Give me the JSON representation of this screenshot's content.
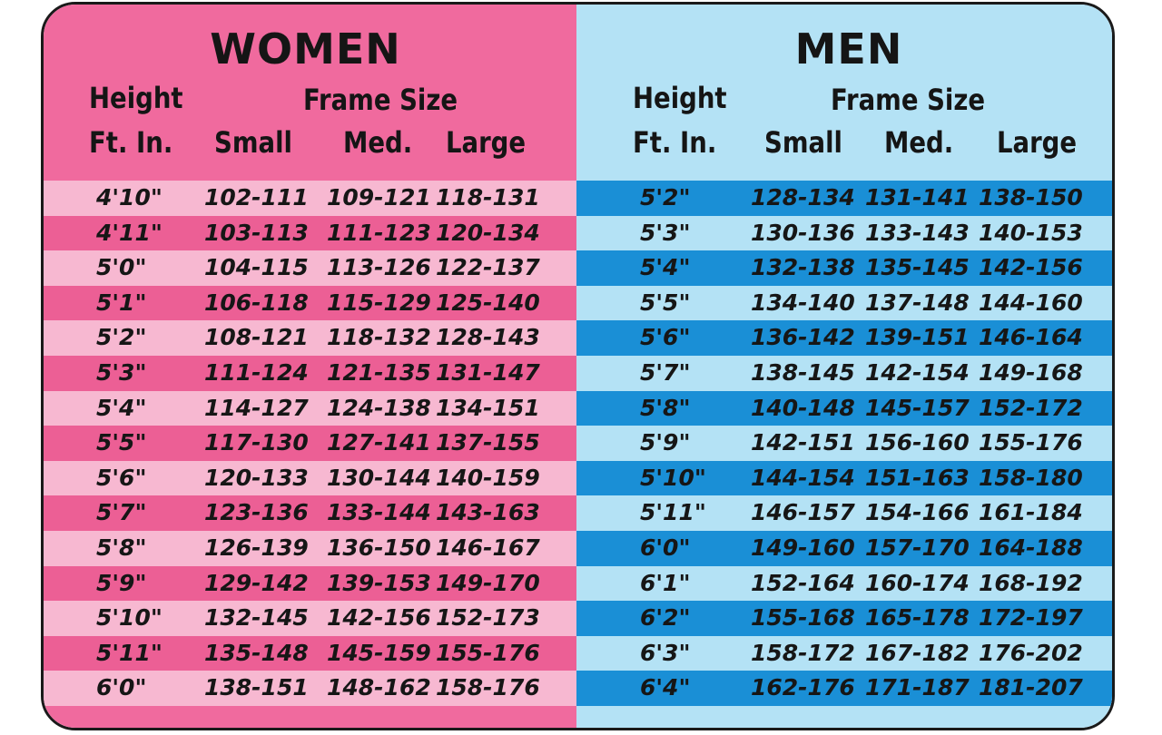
{
  "women": {
    "title": "WOMEN",
    "height_label": "Height",
    "ftin_label": "Ft. In.",
    "frame_label": "Frame Size",
    "small_label": "Small",
    "med_label": "Med.",
    "large_label": "Large",
    "rows": [
      {
        "height": "4'10\"",
        "small": "102-111",
        "med": "109-121",
        "large": "118-131"
      },
      {
        "height": "4'11\"",
        "small": "103-113",
        "med": "111-123",
        "large": "120-134"
      },
      {
        "height": "5'0\"",
        "small": "104-115",
        "med": "113-126",
        "large": "122-137"
      },
      {
        "height": "5'1\"",
        "small": "106-118",
        "med": "115-129",
        "large": "125-140"
      },
      {
        "height": "5'2\"",
        "small": "108-121",
        "med": "118-132",
        "large": "128-143"
      },
      {
        "height": "5'3\"",
        "small": "111-124",
        "med": "121-135",
        "large": "131-147"
      },
      {
        "height": "5'4\"",
        "small": "114-127",
        "med": "124-138",
        "large": "134-151"
      },
      {
        "height": "5'5\"",
        "small": "117-130",
        "med": "127-141",
        "large": "137-155"
      },
      {
        "height": "5'6\"",
        "small": "120-133",
        "med": "130-144",
        "large": "140-159"
      },
      {
        "height": "5'7\"",
        "small": "123-136",
        "med": "133-144",
        "large": "143-163"
      },
      {
        "height": "5'8\"",
        "small": "126-139",
        "med": "136-150",
        "large": "146-167"
      },
      {
        "height": "5'9\"",
        "small": "129-142",
        "med": "139-153",
        "large": "149-170"
      },
      {
        "height": "5'10\"",
        "small": "132-145",
        "med": "142-156",
        "large": "152-173"
      },
      {
        "height": "5'11\"",
        "small": "135-148",
        "med": "145-159",
        "large": "155-176"
      },
      {
        "height": "6'0\"",
        "small": "138-151",
        "med": "148-162",
        "large": "158-176"
      }
    ]
  },
  "men": {
    "title": "MEN",
    "height_label": "Height",
    "ftin_label": "Ft. In.",
    "frame_label": "Frame Size",
    "small_label": "Small",
    "med_label": "Med.",
    "large_label": "Large",
    "rows": [
      {
        "height": "5'2\"",
        "small": "128-134",
        "med": "131-141",
        "large": "138-150"
      },
      {
        "height": "5'3\"",
        "small": "130-136",
        "med": "133-143",
        "large": "140-153"
      },
      {
        "height": "5'4\"",
        "small": "132-138",
        "med": "135-145",
        "large": "142-156"
      },
      {
        "height": "5'5\"",
        "small": "134-140",
        "med": "137-148",
        "large": "144-160"
      },
      {
        "height": "5'6\"",
        "small": "136-142",
        "med": "139-151",
        "large": "146-164"
      },
      {
        "height": "5'7\"",
        "small": "138-145",
        "med": "142-154",
        "large": "149-168"
      },
      {
        "height": "5'8\"",
        "small": "140-148",
        "med": "145-157",
        "large": "152-172"
      },
      {
        "height": "5'9\"",
        "small": "142-151",
        "med": "156-160",
        "large": "155-176"
      },
      {
        "height": "5'10\"",
        "small": "144-154",
        "med": "151-163",
        "large": "158-180"
      },
      {
        "height": "5'11\"",
        "small": "146-157",
        "med": "154-166",
        "large": "161-184"
      },
      {
        "height": "6'0\"",
        "small": "149-160",
        "med": "157-170",
        "large": "164-188"
      },
      {
        "height": "6'1\"",
        "small": "152-164",
        "med": "160-174",
        "large": "168-192"
      },
      {
        "height": "6'2\"",
        "small": "155-168",
        "med": "165-178",
        "large": "172-197"
      },
      {
        "height": "6'3\"",
        "small": "158-172",
        "med": "167-182",
        "large": "176-202"
      },
      {
        "height": "6'4\"",
        "small": "162-176",
        "med": "171-187",
        "large": "181-207"
      }
    ]
  },
  "colors": {
    "women_bg": "#f06a9e",
    "women_row_light": "#f7b8d1",
    "women_row_dark": "#ec5f95",
    "men_bg": "#b4e2f5",
    "men_row_light": "#b4e2f5",
    "men_row_dark": "#1a8fd6"
  }
}
